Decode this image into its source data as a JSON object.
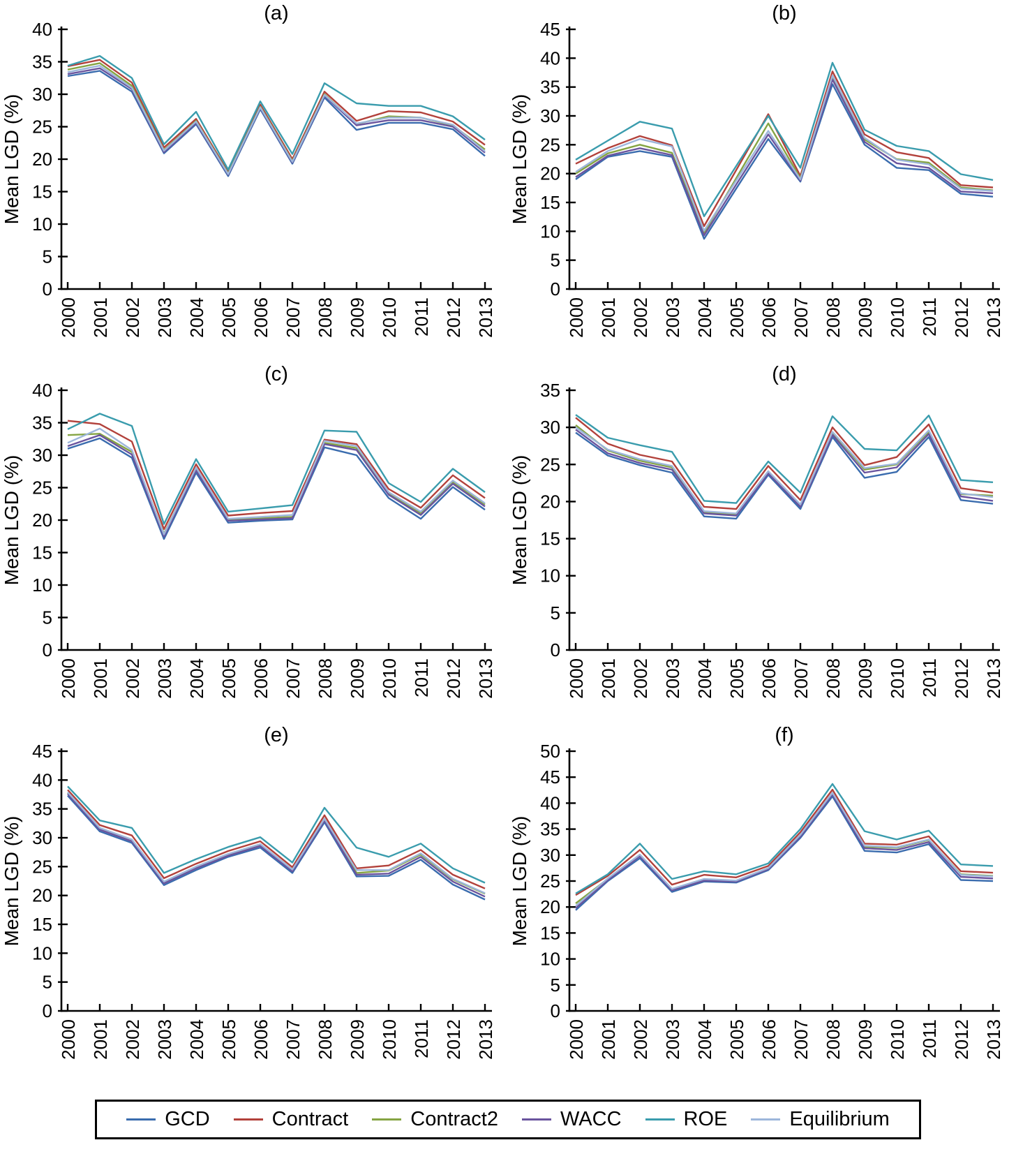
{
  "legend": {
    "entries": [
      {
        "label": "GCD",
        "color": "#3a6cae"
      },
      {
        "label": "Contract",
        "color": "#b2413b"
      },
      {
        "label": "Contract2",
        "color": "#85a443"
      },
      {
        "label": "WACC",
        "color": "#6a549e"
      },
      {
        "label": "ROE",
        "color": "#3a9cad"
      },
      {
        "label": "Equilibrium",
        "color": "#9db6db"
      }
    ]
  },
  "chart_data": [
    {
      "id": "a",
      "type": "line",
      "title": "(a)",
      "ylabel": "Mean LGD (%)",
      "ylim": [
        0,
        40
      ],
      "ytick_step": 5,
      "grid": false,
      "categories": [
        "2000",
        "2001",
        "2002",
        "2003",
        "2004",
        "2005",
        "2006",
        "2007",
        "2008",
        "2009",
        "2010",
        "2011",
        "2012",
        "2013"
      ],
      "series": [
        {
          "name": "GCD",
          "color": "#3a6cae",
          "values": [
            32.8,
            33.6,
            30.4,
            20.9,
            25.4,
            17.4,
            27.7,
            19.3,
            29.5,
            24.5,
            25.6,
            25.6,
            24.6,
            20.5
          ]
        },
        {
          "name": "Contract",
          "color": "#b2413b",
          "values": [
            34.3,
            35.3,
            31.8,
            21.8,
            26.2,
            18.0,
            28.4,
            20.0,
            30.4,
            25.9,
            27.4,
            27.2,
            25.8,
            22.2
          ]
        },
        {
          "name": "Contract2",
          "color": "#85a443",
          "values": [
            33.8,
            34.8,
            31.3,
            21.4,
            25.9,
            17.8,
            28.1,
            19.7,
            30.0,
            25.4,
            26.6,
            26.4,
            25.2,
            21.5
          ]
        },
        {
          "name": "WACC",
          "color": "#6a549e",
          "values": [
            33.1,
            34.0,
            30.8,
            21.1,
            25.6,
            17.6,
            27.9,
            19.5,
            29.8,
            25.2,
            26.0,
            26.0,
            25.0,
            21.0
          ]
        },
        {
          "name": "ROE",
          "color": "#3a9cad",
          "values": [
            34.4,
            35.9,
            32.5,
            22.3,
            27.3,
            18.4,
            28.9,
            20.8,
            31.7,
            28.6,
            28.2,
            28.2,
            26.6,
            23.0
          ]
        },
        {
          "name": "Equilibrium",
          "color": "#9db6db",
          "values": [
            33.4,
            34.4,
            31.0,
            21.3,
            25.8,
            17.7,
            28.0,
            19.6,
            29.9,
            25.5,
            26.4,
            26.4,
            25.3,
            21.2
          ]
        }
      ]
    },
    {
      "id": "b",
      "type": "line",
      "title": "(b)",
      "ylabel": "Mean LGD (%)",
      "ylim": [
        0,
        45
      ],
      "ytick_step": 5,
      "grid": false,
      "categories": [
        "2000",
        "2001",
        "2002",
        "2003",
        "2004",
        "2005",
        "2006",
        "2007",
        "2008",
        "2009",
        "2010",
        "2011",
        "2012",
        "2013"
      ],
      "series": [
        {
          "name": "GCD",
          "color": "#3a6cae",
          "values": [
            19.0,
            22.9,
            23.9,
            22.9,
            8.7,
            17.4,
            26.0,
            18.6,
            35.5,
            25.0,
            21.0,
            20.6,
            16.5,
            16.0
          ]
        },
        {
          "name": "Contract",
          "color": "#b2413b",
          "values": [
            21.7,
            24.4,
            26.5,
            24.9,
            10.9,
            20.6,
            30.3,
            19.6,
            37.7,
            26.8,
            23.7,
            22.7,
            18.0,
            17.6
          ]
        },
        {
          "name": "Contract2",
          "color": "#85a443",
          "values": [
            20.0,
            23.5,
            25.0,
            23.6,
            9.7,
            19.2,
            28.7,
            19.2,
            36.7,
            25.9,
            22.5,
            21.9,
            17.6,
            17.1
          ]
        },
        {
          "name": "WACC",
          "color": "#6a549e",
          "values": [
            19.4,
            23.1,
            24.4,
            23.2,
            9.3,
            18.1,
            26.8,
            18.8,
            36.3,
            25.5,
            21.8,
            21.0,
            16.9,
            16.6
          ]
        },
        {
          "name": "ROE",
          "color": "#3a9cad",
          "values": [
            22.4,
            25.7,
            29.0,
            27.8,
            12.6,
            21.3,
            30.0,
            21.0,
            39.2,
            27.6,
            24.8,
            23.9,
            19.9,
            18.9
          ]
        },
        {
          "name": "Equilibrium",
          "color": "#9db6db",
          "values": [
            20.3,
            23.9,
            26.0,
            24.7,
            10.1,
            18.8,
            27.4,
            19.0,
            37.0,
            26.2,
            22.4,
            21.6,
            17.4,
            17.0
          ]
        }
      ]
    },
    {
      "id": "c",
      "type": "line",
      "title": "(c)",
      "ylabel": "Mean LGD (%)",
      "ylim": [
        0,
        40
      ],
      "ytick_step": 5,
      "grid": false,
      "categories": [
        "2000",
        "2001",
        "2002",
        "2003",
        "2004",
        "2005",
        "2006",
        "2007",
        "2008",
        "2009",
        "2010",
        "2011",
        "2012",
        "2013"
      ],
      "series": [
        {
          "name": "GCD",
          "color": "#3a6cae",
          "values": [
            31.0,
            32.6,
            29.6,
            17.1,
            27.3,
            19.6,
            19.9,
            20.1,
            31.2,
            30.0,
            23.4,
            20.2,
            25.1,
            21.6
          ]
        },
        {
          "name": "Contract",
          "color": "#b2413b",
          "values": [
            35.3,
            34.8,
            32.1,
            18.6,
            28.6,
            20.7,
            21.1,
            21.4,
            32.4,
            31.7,
            24.8,
            21.9,
            26.9,
            23.4
          ]
        },
        {
          "name": "Contract2",
          "color": "#85a443",
          "values": [
            33.1,
            33.3,
            30.5,
            17.9,
            27.9,
            20.0,
            20.3,
            20.5,
            31.9,
            31.1,
            24.1,
            21.1,
            25.9,
            22.4
          ]
        },
        {
          "name": "WACC",
          "color": "#6a549e",
          "values": [
            31.4,
            33.1,
            30.1,
            17.5,
            27.7,
            19.9,
            20.1,
            20.3,
            31.7,
            30.8,
            23.9,
            20.8,
            25.6,
            22.1
          ]
        },
        {
          "name": "ROE",
          "color": "#3a9cad",
          "values": [
            34.0,
            36.4,
            34.5,
            19.4,
            29.4,
            21.3,
            21.8,
            22.3,
            33.8,
            33.6,
            25.7,
            22.8,
            27.9,
            24.3
          ]
        },
        {
          "name": "Equilibrium",
          "color": "#9db6db",
          "values": [
            31.9,
            34.1,
            30.8,
            17.8,
            28.1,
            20.2,
            20.5,
            20.8,
            32.2,
            31.4,
            24.3,
            21.3,
            26.1,
            22.6
          ]
        }
      ]
    },
    {
      "id": "d",
      "type": "line",
      "title": "(d)",
      "ylabel": "Mean LGD (%)",
      "ylim": [
        0,
        35
      ],
      "ytick_step": 5,
      "grid": false,
      "categories": [
        "2000",
        "2001",
        "2002",
        "2003",
        "2004",
        "2005",
        "2006",
        "2007",
        "2008",
        "2009",
        "2010",
        "2011",
        "2012",
        "2013"
      ],
      "series": [
        {
          "name": "GCD",
          "color": "#3a6cae",
          "values": [
            29.3,
            26.2,
            24.9,
            23.9,
            18.0,
            17.7,
            23.6,
            19.0,
            28.7,
            23.2,
            24.0,
            28.7,
            20.2,
            19.7
          ]
        },
        {
          "name": "Contract",
          "color": "#b2413b",
          "values": [
            31.3,
            27.8,
            26.3,
            25.4,
            19.3,
            19.0,
            24.8,
            20.2,
            30.0,
            24.9,
            26.0,
            30.4,
            21.8,
            21.2
          ]
        },
        {
          "name": "Contract2",
          "color": "#85a443",
          "values": [
            30.3,
            26.9,
            25.5,
            24.6,
            18.6,
            18.3,
            24.0,
            19.5,
            29.3,
            24.3,
            25.0,
            29.4,
            21.0,
            20.8
          ]
        },
        {
          "name": "WACC",
          "color": "#6a549e",
          "values": [
            29.7,
            26.5,
            25.2,
            24.3,
            18.4,
            18.1,
            23.8,
            19.3,
            29.0,
            23.9,
            24.6,
            29.1,
            20.7,
            20.1
          ]
        },
        {
          "name": "ROE",
          "color": "#3a9cad",
          "values": [
            31.7,
            28.6,
            27.6,
            26.7,
            20.1,
            19.8,
            25.4,
            21.2,
            31.5,
            27.1,
            26.9,
            31.6,
            22.9,
            22.6
          ]
        },
        {
          "name": "Equilibrium",
          "color": "#9db6db",
          "values": [
            30.0,
            27.0,
            25.7,
            24.8,
            18.7,
            18.4,
            24.1,
            19.6,
            29.4,
            24.5,
            25.1,
            29.6,
            21.1,
            20.6
          ]
        }
      ]
    },
    {
      "id": "e",
      "type": "line",
      "title": "(e)",
      "ylabel": "Mean LGD (%)",
      "ylim": [
        0,
        45
      ],
      "ytick_step": 5,
      "grid": false,
      "categories": [
        "2000",
        "2001",
        "2002",
        "2003",
        "2004",
        "2005",
        "2006",
        "2007",
        "2008",
        "2009",
        "2010",
        "2011",
        "2012",
        "2013"
      ],
      "series": [
        {
          "name": "GCD",
          "color": "#3a6cae",
          "values": [
            37.3,
            31.1,
            29.1,
            21.8,
            24.4,
            26.7,
            28.3,
            23.9,
            32.7,
            23.3,
            23.4,
            26.2,
            21.9,
            19.3
          ]
        },
        {
          "name": "Contract",
          "color": "#b2413b",
          "values": [
            38.3,
            32.2,
            30.4,
            23.0,
            25.5,
            27.7,
            29.4,
            24.9,
            33.9,
            24.7,
            25.2,
            27.9,
            23.6,
            21.2
          ]
        },
        {
          "name": "Contract2",
          "color": "#85a443",
          "values": [
            37.8,
            31.6,
            29.6,
            22.3,
            24.9,
            27.1,
            28.8,
            24.4,
            33.2,
            23.9,
            24.3,
            27.1,
            22.8,
            20.3
          ]
        },
        {
          "name": "WACC",
          "color": "#6a549e",
          "values": [
            37.6,
            31.4,
            29.4,
            22.1,
            24.7,
            26.9,
            28.6,
            24.2,
            33.0,
            23.6,
            23.8,
            26.7,
            22.4,
            19.8
          ]
        },
        {
          "name": "ROE",
          "color": "#3a9cad",
          "values": [
            38.9,
            33.0,
            31.7,
            23.9,
            26.3,
            28.4,
            30.1,
            25.7,
            35.2,
            28.3,
            26.7,
            29.0,
            24.7,
            22.2
          ]
        },
        {
          "name": "Equilibrium",
          "color": "#9db6db",
          "values": [
            37.9,
            31.7,
            29.7,
            22.4,
            25.0,
            27.2,
            28.9,
            24.5,
            33.3,
            24.4,
            24.4,
            27.3,
            22.9,
            20.4
          ]
        }
      ]
    },
    {
      "id": "f",
      "type": "line",
      "title": "(f)",
      "ylabel": "Mean LGD (%)",
      "ylim": [
        0,
        50
      ],
      "ytick_step": 5,
      "grid": false,
      "categories": [
        "2000",
        "2001",
        "2002",
        "2003",
        "2004",
        "2005",
        "2006",
        "2007",
        "2008",
        "2009",
        "2010",
        "2011",
        "2012",
        "2013"
      ],
      "series": [
        {
          "name": "GCD",
          "color": "#3a6cae",
          "values": [
            19.4,
            25.0,
            29.4,
            22.9,
            24.9,
            24.7,
            27.1,
            33.3,
            41.3,
            30.8,
            30.5,
            32.1,
            25.2,
            25.0
          ]
        },
        {
          "name": "Contract",
          "color": "#b2413b",
          "values": [
            22.3,
            26.0,
            31.0,
            24.3,
            26.2,
            25.7,
            27.9,
            34.4,
            42.6,
            32.2,
            32.0,
            33.6,
            26.9,
            26.6
          ]
        },
        {
          "name": "Contract2",
          "color": "#85a443",
          "values": [
            20.7,
            25.4,
            30.0,
            23.4,
            25.3,
            25.0,
            27.4,
            33.8,
            41.9,
            31.6,
            31.4,
            32.9,
            26.3,
            26.0
          ]
        },
        {
          "name": "WACC",
          "color": "#6a549e",
          "values": [
            19.8,
            25.2,
            29.8,
            23.2,
            25.1,
            24.9,
            27.3,
            33.6,
            41.7,
            31.3,
            31.0,
            32.5,
            25.8,
            25.5
          ]
        },
        {
          "name": "ROE",
          "color": "#3a9cad",
          "values": [
            22.6,
            26.3,
            32.2,
            25.4,
            26.9,
            26.3,
            28.4,
            35.0,
            43.7,
            34.6,
            33.0,
            34.7,
            28.2,
            27.9
          ]
        },
        {
          "name": "Equilibrium",
          "color": "#9db6db",
          "values": [
            20.2,
            25.5,
            30.1,
            23.5,
            25.4,
            25.1,
            27.5,
            33.9,
            42.0,
            31.8,
            31.5,
            33.0,
            26.2,
            25.9
          ]
        }
      ]
    }
  ],
  "style": {
    "axis_color": "#000000",
    "background": "#ffffff",
    "series_stroke_width": 2.4
  }
}
